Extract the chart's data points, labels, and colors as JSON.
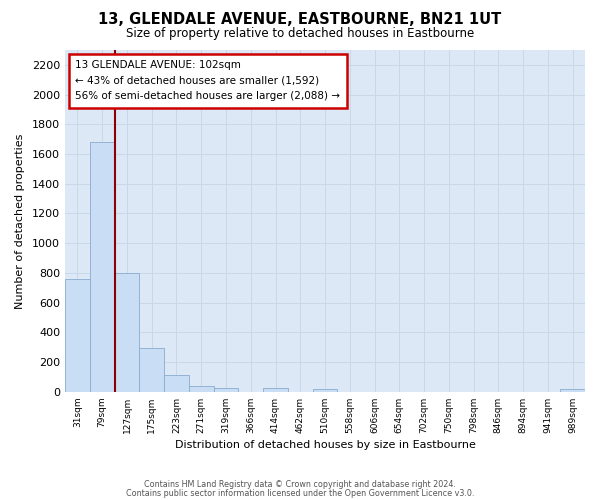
{
  "title": "13, GLENDALE AVENUE, EASTBOURNE, BN21 1UT",
  "subtitle": "Size of property relative to detached houses in Eastbourne",
  "xlabel": "Distribution of detached houses by size in Eastbourne",
  "ylabel": "Number of detached properties",
  "bar_labels": [
    "31sqm",
    "79sqm",
    "127sqm",
    "175sqm",
    "223sqm",
    "271sqm",
    "319sqm",
    "366sqm",
    "414sqm",
    "462sqm",
    "510sqm",
    "558sqm",
    "606sqm",
    "654sqm",
    "702sqm",
    "750sqm",
    "798sqm",
    "846sqm",
    "894sqm",
    "941sqm",
    "989sqm"
  ],
  "bar_values": [
    760,
    1680,
    800,
    295,
    110,
    38,
    25,
    0,
    25,
    0,
    18,
    0,
    0,
    0,
    0,
    0,
    0,
    0,
    0,
    0,
    18
  ],
  "bar_color": "#c9ddf5",
  "bar_edge_color": "#8aaccf",
  "highlight_color": "#8b0000",
  "ylim": [
    0,
    2300
  ],
  "yticks": [
    0,
    200,
    400,
    600,
    800,
    1000,
    1200,
    1400,
    1600,
    1800,
    2000,
    2200
  ],
  "annotation_title": "13 GLENDALE AVENUE: 102sqm",
  "annotation_line1": "← 43% of detached houses are smaller (1,592)",
  "annotation_line2": "56% of semi-detached houses are larger (2,088) →",
  "annotation_box_color": "#ffffff",
  "annotation_box_edge": "#cc0000",
  "footer_line1": "Contains HM Land Registry data © Crown copyright and database right 2024.",
  "footer_line2": "Contains public sector information licensed under the Open Government Licence v3.0.",
  "grid_color": "#c8d8e8",
  "background_color": "#dce8f5"
}
